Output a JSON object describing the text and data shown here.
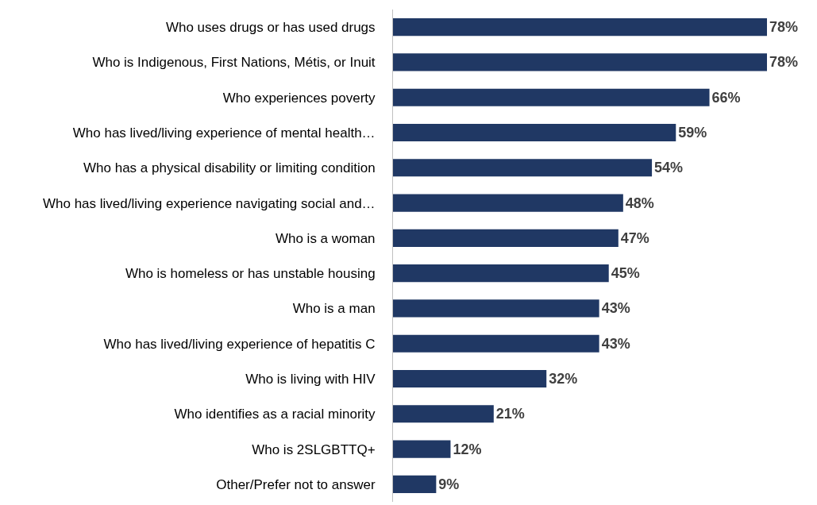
{
  "chart_data": {
    "type": "bar",
    "orientation": "horizontal",
    "categories": [
      "Who uses drugs or has used drugs",
      "Who is Indigenous, First Nations, Métis, or Inuit",
      "Who experiences poverty",
      "Who has lived/living experience of mental health…",
      "Who has a physical disability or limiting condition",
      "Who has lived/living experience navigating social and…",
      "Who is a woman",
      "Who is homeless or has unstable housing",
      "Who is a man",
      "Who has lived/living experience of hepatitis C",
      "Who is living with HIV",
      "Who identifies as a racial minority",
      "Who is 2SLGBTTQ+",
      "Other/Prefer not to answer"
    ],
    "values": [
      78,
      78,
      66,
      59,
      54,
      48,
      47,
      45,
      43,
      43,
      32,
      21,
      12,
      9
    ],
    "value_labels": [
      "78%",
      "78%",
      "66%",
      "59%",
      "54%",
      "48%",
      "47%",
      "45%",
      "43%",
      "43%",
      "32%",
      "21%",
      "12%",
      "9%"
    ],
    "color": "#203864"
  }
}
